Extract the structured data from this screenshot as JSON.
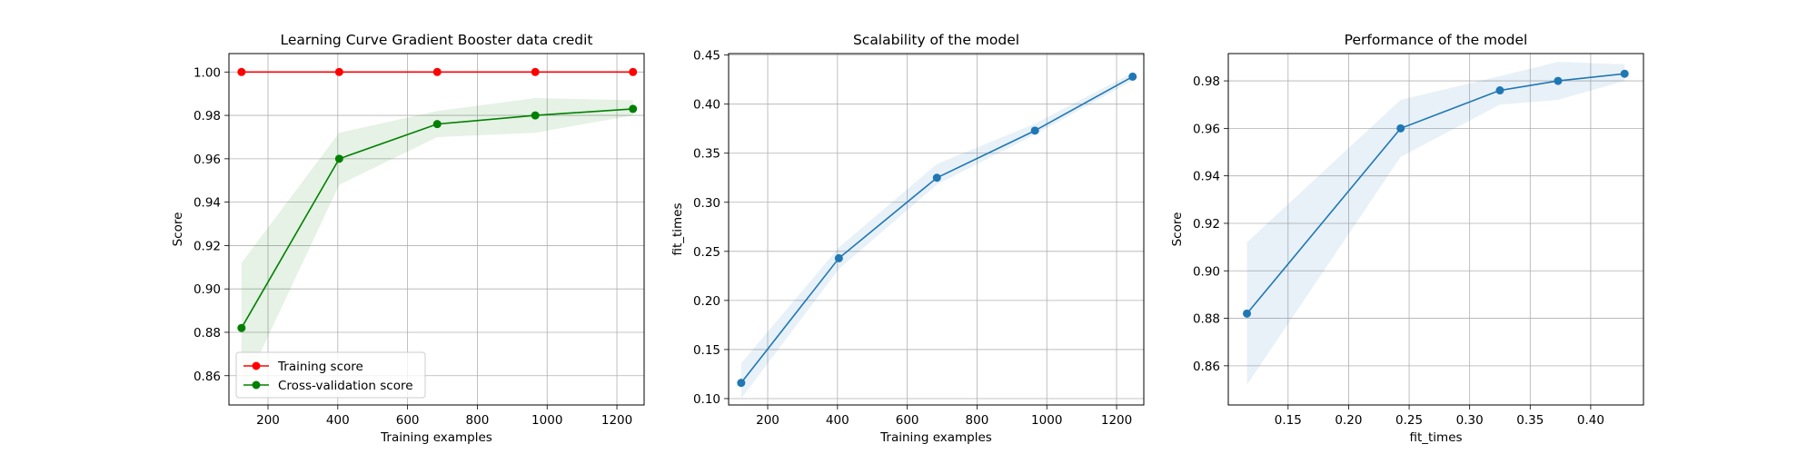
{
  "chart_data": [
    {
      "type": "line",
      "title": "Learning Curve Gradient Booster data credit",
      "xlabel": "Training examples",
      "ylabel": "Score",
      "xlim": [
        88,
        1278
      ],
      "ylim": [
        0.8465,
        1.0085
      ],
      "xticks": [
        200,
        400,
        600,
        800,
        1000,
        1200
      ],
      "xtick_labels": [
        "200",
        "400",
        "600",
        "800",
        "1000",
        "1200"
      ],
      "yticks": [
        0.86,
        0.88,
        0.9,
        0.92,
        0.94,
        0.96,
        0.98,
        1.0
      ],
      "ytick_labels": [
        "0.86",
        "0.88",
        "0.90",
        "0.92",
        "0.94",
        "0.96",
        "0.98",
        "1.00"
      ],
      "grid": true,
      "legend_position": "lower-left",
      "x": [
        124,
        404,
        685,
        966,
        1246
      ],
      "series": [
        {
          "name": "Training score",
          "color": "#ff0000",
          "values": [
            1.0,
            1.0,
            1.0,
            1.0,
            1.0
          ],
          "band_lower": [
            1.0,
            1.0,
            1.0,
            1.0,
            1.0
          ],
          "band_upper": [
            1.0,
            1.0,
            1.0,
            1.0,
            1.0
          ]
        },
        {
          "name": "Cross-validation score",
          "color": "#008000",
          "values": [
            0.882,
            0.96,
            0.976,
            0.98,
            0.983
          ],
          "band_lower": [
            0.852,
            0.948,
            0.97,
            0.972,
            0.98
          ],
          "band_upper": [
            0.912,
            0.972,
            0.982,
            0.988,
            0.987
          ]
        }
      ]
    },
    {
      "type": "line",
      "title": "Scalability of the model",
      "xlabel": "Training examples",
      "ylabel": "fit_times",
      "xlim": [
        88,
        1278
      ],
      "ylim": [
        0.0935,
        0.4515
      ],
      "xticks": [
        200,
        400,
        600,
        800,
        1000,
        1200
      ],
      "xtick_labels": [
        "200",
        "400",
        "600",
        "800",
        "1000",
        "1200"
      ],
      "yticks": [
        0.1,
        0.15,
        0.2,
        0.25,
        0.3,
        0.35,
        0.4,
        0.45
      ],
      "ytick_labels": [
        "0.10",
        "0.15",
        "0.20",
        "0.25",
        "0.30",
        "0.35",
        "0.40",
        "0.45"
      ],
      "grid": true,
      "x": [
        124,
        404,
        685,
        966,
        1246
      ],
      "series": [
        {
          "color": "#1f77b4",
          "values": [
            0.116,
            0.243,
            0.325,
            0.373,
            0.428
          ],
          "band_lower": [
            0.1,
            0.232,
            0.318,
            0.369,
            0.424
          ],
          "band_upper": [
            0.136,
            0.254,
            0.339,
            0.38,
            0.432
          ]
        }
      ]
    },
    {
      "type": "line",
      "title": "Performance of the model",
      "xlabel": "fit_times",
      "ylabel": "Score",
      "xlim": [
        0.1006,
        0.4436
      ],
      "ylim": [
        0.8435,
        0.9915
      ],
      "xticks": [
        0.15,
        0.2,
        0.25,
        0.3,
        0.35,
        0.4
      ],
      "xtick_labels": [
        "0.15",
        "0.20",
        "0.25",
        "0.30",
        "0.35",
        "0.40"
      ],
      "yticks": [
        0.86,
        0.88,
        0.9,
        0.92,
        0.94,
        0.96,
        0.98
      ],
      "ytick_labels": [
        "0.86",
        "0.88",
        "0.90",
        "0.92",
        "0.94",
        "0.96",
        "0.98"
      ],
      "grid": true,
      "x": [
        0.116,
        0.243,
        0.325,
        0.373,
        0.428
      ],
      "series": [
        {
          "color": "#1f77b4",
          "values": [
            0.882,
            0.96,
            0.976,
            0.98,
            0.983
          ],
          "band_lower": [
            0.852,
            0.948,
            0.97,
            0.972,
            0.98
          ],
          "band_upper": [
            0.912,
            0.972,
            0.982,
            0.988,
            0.987
          ]
        }
      ]
    }
  ]
}
